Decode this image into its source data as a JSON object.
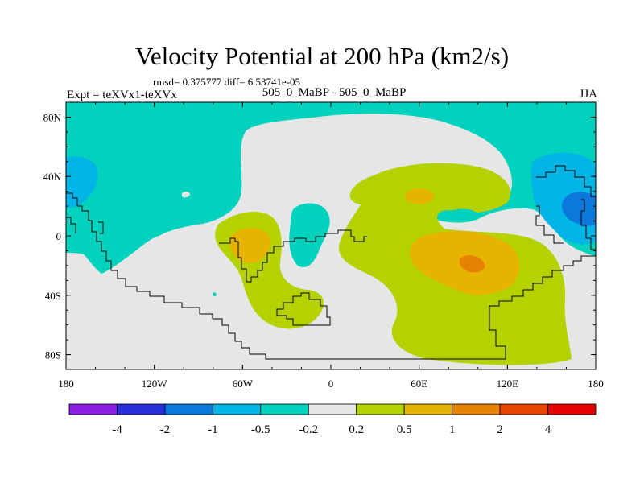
{
  "chart_data": {
    "type": "contour-map",
    "title": "Velocity Potential at 200 hPa (km2/s)",
    "stats_text": "rmsd= 0.375777 diff= 6.53741e-05",
    "left_label": "Expt = teXVx1-teXVx",
    "center_label": "505_0_MaBP - 505_0_MaBP",
    "right_label": "JJA",
    "lon_range": [
      -180,
      180
    ],
    "lat_range": [
      -90,
      90
    ],
    "y_ticks": [
      {
        "value": 80,
        "label": "80N"
      },
      {
        "value": 40,
        "label": "40N"
      },
      {
        "value": 0,
        "label": "0"
      },
      {
        "value": -40,
        "label": "40S"
      },
      {
        "value": -80,
        "label": "80S"
      }
    ],
    "x_ticks": [
      {
        "value": -180,
        "label": "180"
      },
      {
        "value": -120,
        "label": "120W"
      },
      {
        "value": -60,
        "label": "60W"
      },
      {
        "value": 0,
        "label": "0"
      },
      {
        "value": 60,
        "label": "60E"
      },
      {
        "value": 120,
        "label": "120E"
      },
      {
        "value": 180,
        "label": "180"
      }
    ],
    "levels": [
      "-4",
      "-2",
      "-1",
      "-0.5",
      "-0.2",
      "0.2",
      "0.5",
      "1",
      "2",
      "4"
    ],
    "level_colors": [
      "#8c1ee6",
      "#2830dc",
      "#0a78dc",
      "#00b4e6",
      "#00d2be",
      "#e6e6e6",
      "#b4d200",
      "#e6b400",
      "#e68200",
      "#e64600",
      "#e60000"
    ],
    "regions": [
      {
        "name": "global-background",
        "level": "0.2"
      },
      {
        "name": "north-polar-band",
        "level": "-0.2"
      },
      {
        "name": "west-pacific-negative",
        "level": "-0.2"
      },
      {
        "name": "east-pacific-negative",
        "level": "-0.2"
      },
      {
        "name": "atlantic-negative",
        "level": "-0.2"
      },
      {
        "name": "indian-ocean-positive",
        "level": "0.5"
      },
      {
        "name": "south-america-positive",
        "level": "0.5"
      },
      {
        "name": "indian-ocean-max",
        "level": "1"
      },
      {
        "name": "indian-ocean-peak",
        "level": "2"
      }
    ]
  }
}
